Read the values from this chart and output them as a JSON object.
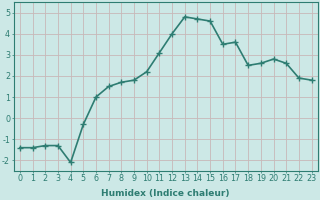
{
  "x": [
    0,
    1,
    2,
    3,
    4,
    5,
    6,
    7,
    8,
    9,
    10,
    11,
    12,
    13,
    14,
    15,
    16,
    17,
    18,
    19,
    20,
    21,
    22,
    23
  ],
  "y": [
    -1.4,
    -1.4,
    -1.3,
    -1.3,
    -2.1,
    -0.3,
    1.0,
    1.5,
    1.7,
    1.8,
    2.2,
    3.1,
    4.0,
    4.8,
    4.7,
    4.6,
    3.5,
    3.6,
    2.5,
    2.6,
    2.8,
    2.6,
    1.9,
    1.8
  ],
  "line_color": "#2e7d72",
  "marker": "+",
  "marker_size": 4,
  "bg_color": "#cce8e6",
  "grid_color": "#c8b8b8",
  "xlabel": "Humidex (Indice chaleur)",
  "ylim": [
    -2.5,
    5.5
  ],
  "xlim": [
    -0.5,
    23.5
  ],
  "yticks": [
    -2,
    -1,
    0,
    1,
    2,
    3,
    4,
    5
  ],
  "xticks": [
    0,
    1,
    2,
    3,
    4,
    5,
    6,
    7,
    8,
    9,
    10,
    11,
    12,
    13,
    14,
    15,
    16,
    17,
    18,
    19,
    20,
    21,
    22,
    23
  ],
  "tick_color": "#2e7d72",
  "label_fontsize": 6.5,
  "tick_fontsize": 5.8,
  "line_width": 1.2
}
